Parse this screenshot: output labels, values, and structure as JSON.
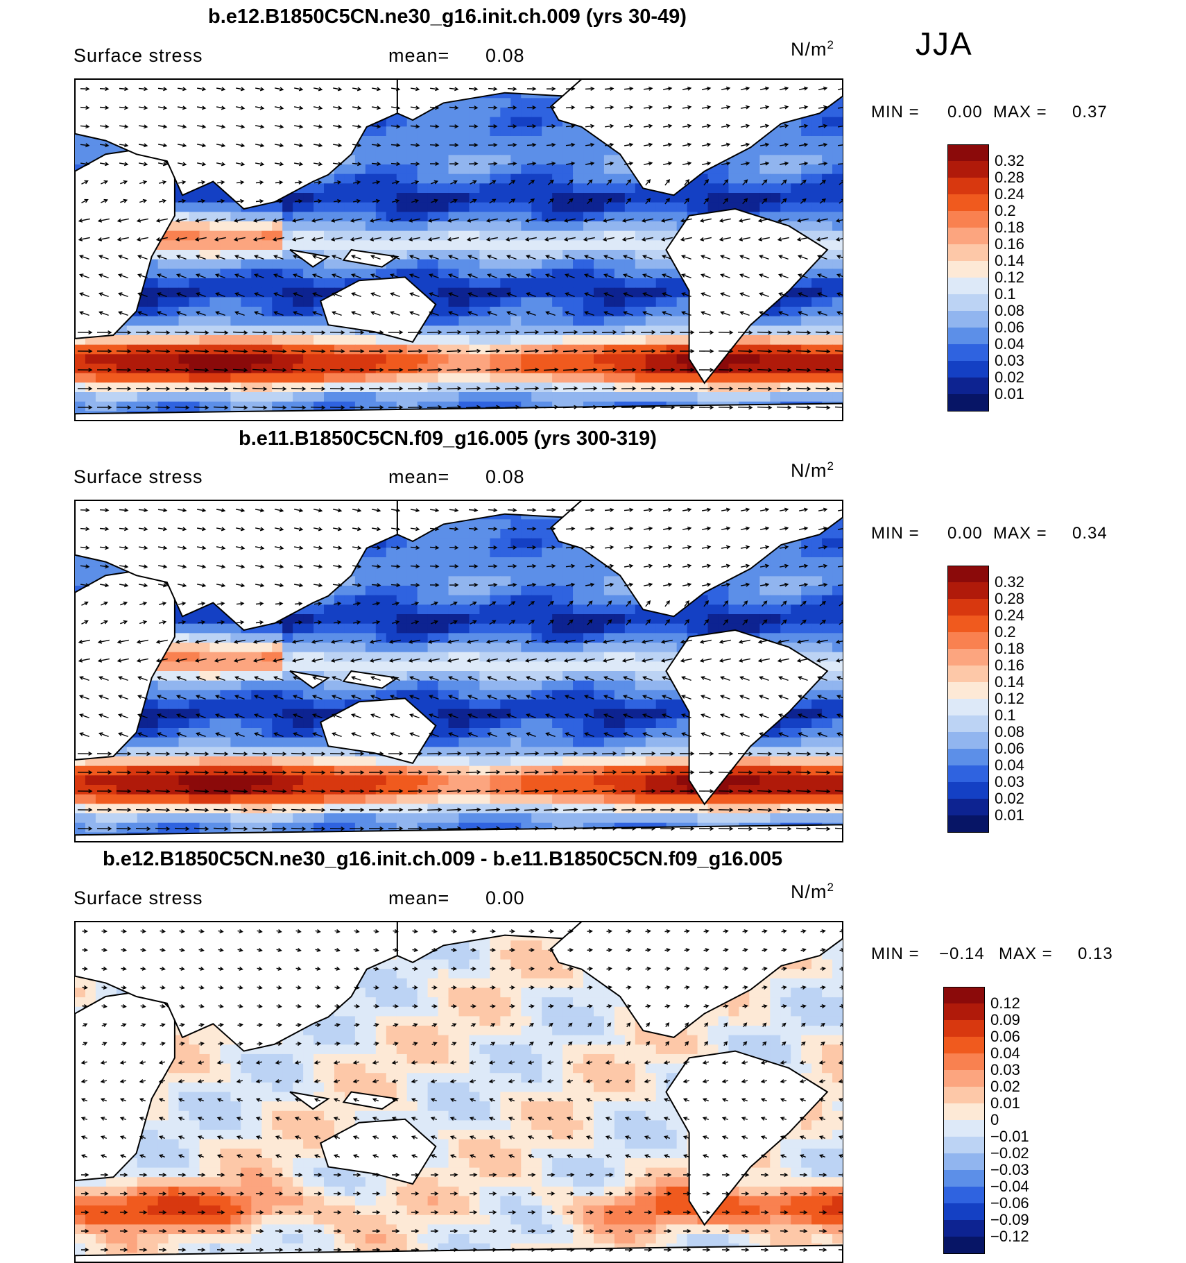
{
  "season": "JJA",
  "panels": [
    {
      "title": "b.e12.B1850C5CN.ne30_g16.init.ch.009 (yrs 30-49)",
      "variable": "Surface stress",
      "mean_label": "mean=",
      "mean_value": "0.08",
      "unit_base": "N/m",
      "unit_exp": "2",
      "min_label": "MIN =",
      "min_value": "0.00",
      "max_label": "MAX =",
      "max_value": "0.37"
    },
    {
      "title": "b.e11.B1850C5CN.f09_g16.005 (yrs 300-319)",
      "variable": "Surface stress",
      "mean_label": "mean=",
      "mean_value": "0.08",
      "unit_base": "N/m",
      "unit_exp": "2",
      "min_label": "MIN =",
      "min_value": "0.00",
      "max_label": "MAX =",
      "max_value": "0.34"
    },
    {
      "title": "b.e12.B1850C5CN.ne30_g16.init.ch.009 - b.e11.B1850C5CN.f09_g16.005",
      "variable": "Surface stress",
      "mean_label": "mean=",
      "mean_value": "0.00",
      "unit_base": "N/m",
      "unit_exp": "2",
      "min_label": "MIN =",
      "min_value": "−0.14",
      "max_label": "MAX =",
      "max_value": "0.13"
    }
  ],
  "chart_data": [
    {
      "type": "heatmap",
      "title": "b.e12.B1850C5CN.ne30_g16.init.ch.009 (yrs 30-49)",
      "colorbar_levels": [
        "0.32",
        "0.28",
        "0.24",
        "0.2",
        "0.18",
        "0.16",
        "0.14",
        "0.12",
        "0.1",
        "0.08",
        "0.06",
        "0.04",
        "0.03",
        "0.02",
        "0.01"
      ],
      "colorbar_colors": [
        "#8b0a0a",
        "#b01a0a",
        "#d8380f",
        "#f05a1e",
        "#f98150",
        "#fca57f",
        "#fdc8a8",
        "#fde9d6",
        "#dde9f8",
        "#bcd3f4",
        "#91b5ef",
        "#5c8fe8",
        "#2f63e0",
        "#1440c4",
        "#0d2391",
        "#071566"
      ],
      "stats": {
        "min": 0.0,
        "max": 0.37,
        "mean": 0.08
      }
    },
    {
      "type": "heatmap",
      "title": "b.e11.B1850C5CN.f09_g16.005 (yrs 300-319)",
      "colorbar_levels": [
        "0.32",
        "0.28",
        "0.24",
        "0.2",
        "0.18",
        "0.16",
        "0.14",
        "0.12",
        "0.1",
        "0.08",
        "0.06",
        "0.04",
        "0.03",
        "0.02",
        "0.01"
      ],
      "colorbar_colors": [
        "#8b0a0a",
        "#b01a0a",
        "#d8380f",
        "#f05a1e",
        "#f98150",
        "#fca57f",
        "#fdc8a8",
        "#fde9d6",
        "#dde9f8",
        "#bcd3f4",
        "#91b5ef",
        "#5c8fe8",
        "#2f63e0",
        "#1440c4",
        "#0d2391",
        "#071566"
      ],
      "stats": {
        "min": 0.0,
        "max": 0.34,
        "mean": 0.08
      }
    },
    {
      "type": "heatmap",
      "title": "b.e12.B1850C5CN.ne30_g16.init.ch.009 - b.e11.B1850C5CN.f09_g16.005",
      "colorbar_levels": [
        "0.12",
        "0.09",
        "0.06",
        "0.04",
        "0.03",
        "0.02",
        "0.01",
        "0",
        "−0.01",
        "−0.02",
        "−0.03",
        "−0.04",
        "−0.06",
        "−0.09",
        "−0.12"
      ],
      "colorbar_colors": [
        "#8b0a0a",
        "#b01a0a",
        "#d8380f",
        "#f05a1e",
        "#f98150",
        "#fca57f",
        "#fdc8a8",
        "#fde9d6",
        "#dde9f8",
        "#bcd3f4",
        "#91b5ef",
        "#5c8fe8",
        "#2f63e0",
        "#1440c4",
        "#0d2391",
        "#071566"
      ],
      "stats": {
        "min": -0.14,
        "max": 0.13,
        "mean": 0.0
      }
    }
  ]
}
